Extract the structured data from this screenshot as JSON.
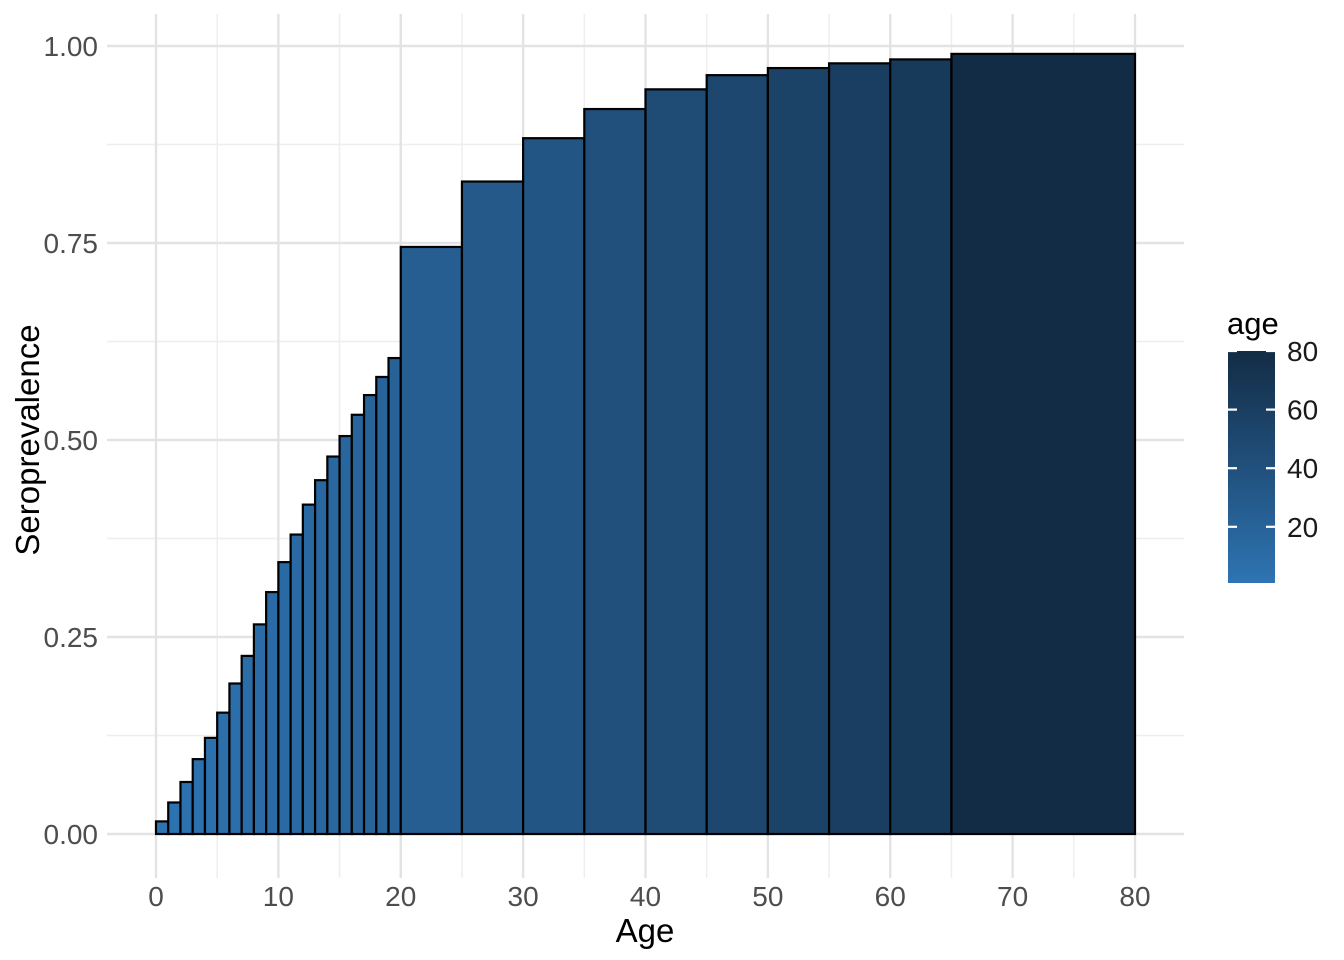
{
  "chart_data": {
    "type": "bar",
    "title": "",
    "xlabel": "Age",
    "ylabel": "Seroprevalence",
    "xlim": [
      0,
      80
    ],
    "ylim": [
      0,
      1
    ],
    "grid": "on",
    "x_major_ticks": [
      0,
      10,
      20,
      30,
      40,
      50,
      60,
      70,
      80
    ],
    "x_minor_ticks": [
      5,
      15,
      25,
      35,
      45,
      55,
      65,
      75
    ],
    "y_major_ticks": [
      0,
      0.25,
      0.5,
      0.75,
      1.0
    ],
    "y_major_tick_labels": [
      "0.00",
      "0.25",
      "0.50",
      "0.75",
      "1.00"
    ],
    "y_minor_ticks": [
      0.125,
      0.375,
      0.625,
      0.875
    ],
    "bars": [
      {
        "age_from": 0,
        "age_to": 1,
        "seroprevalence": 0.016
      },
      {
        "age_from": 1,
        "age_to": 2,
        "seroprevalence": 0.04
      },
      {
        "age_from": 2,
        "age_to": 3,
        "seroprevalence": 0.066
      },
      {
        "age_from": 3,
        "age_to": 4,
        "seroprevalence": 0.095
      },
      {
        "age_from": 4,
        "age_to": 5,
        "seroprevalence": 0.122
      },
      {
        "age_from": 5,
        "age_to": 6,
        "seroprevalence": 0.154
      },
      {
        "age_from": 6,
        "age_to": 7,
        "seroprevalence": 0.191
      },
      {
        "age_from": 7,
        "age_to": 8,
        "seroprevalence": 0.226
      },
      {
        "age_from": 8,
        "age_to": 9,
        "seroprevalence": 0.266
      },
      {
        "age_from": 9,
        "age_to": 10,
        "seroprevalence": 0.307
      },
      {
        "age_from": 10,
        "age_to": 11,
        "seroprevalence": 0.345
      },
      {
        "age_from": 11,
        "age_to": 12,
        "seroprevalence": 0.38
      },
      {
        "age_from": 12,
        "age_to": 13,
        "seroprevalence": 0.418
      },
      {
        "age_from": 13,
        "age_to": 14,
        "seroprevalence": 0.449
      },
      {
        "age_from": 14,
        "age_to": 15,
        "seroprevalence": 0.479
      },
      {
        "age_from": 15,
        "age_to": 16,
        "seroprevalence": 0.505
      },
      {
        "age_from": 16,
        "age_to": 17,
        "seroprevalence": 0.532
      },
      {
        "age_from": 17,
        "age_to": 18,
        "seroprevalence": 0.557
      },
      {
        "age_from": 18,
        "age_to": 19,
        "seroprevalence": 0.58
      },
      {
        "age_from": 19,
        "age_to": 20,
        "seroprevalence": 0.604
      },
      {
        "age_from": 20,
        "age_to": 25,
        "seroprevalence": 0.745
      },
      {
        "age_from": 25,
        "age_to": 30,
        "seroprevalence": 0.828
      },
      {
        "age_from": 30,
        "age_to": 35,
        "seroprevalence": 0.883
      },
      {
        "age_from": 35,
        "age_to": 40,
        "seroprevalence": 0.92
      },
      {
        "age_from": 40,
        "age_to": 45,
        "seroprevalence": 0.945
      },
      {
        "age_from": 45,
        "age_to": 50,
        "seroprevalence": 0.963
      },
      {
        "age_from": 50,
        "age_to": 55,
        "seroprevalence": 0.972
      },
      {
        "age_from": 55,
        "age_to": 60,
        "seroprevalence": 0.978
      },
      {
        "age_from": 60,
        "age_to": 65,
        "seroprevalence": 0.983
      },
      {
        "age_from": 65,
        "age_to": 80,
        "seroprevalence": 0.99
      }
    ],
    "fill_scale": {
      "mapped_field": "age",
      "domain": [
        0,
        80
      ],
      "low_color": "#2e74b3",
      "high_color": "#132c45"
    },
    "legend": {
      "title": "age",
      "position": "right",
      "ticks": [
        80,
        60,
        40,
        20
      ],
      "tick_labels": [
        "80",
        "60",
        "40",
        "20"
      ]
    }
  },
  "colors": {
    "background": "#ffffff",
    "grid_major": "#e3e3e3",
    "grid_minor": "#eeeeee",
    "bar_outline": "#000000",
    "axis_text": "#4d4d4d",
    "title_text": "#000000",
    "legend_text": "#1a1a1a",
    "legend_tick_mark": "#ffffff"
  }
}
